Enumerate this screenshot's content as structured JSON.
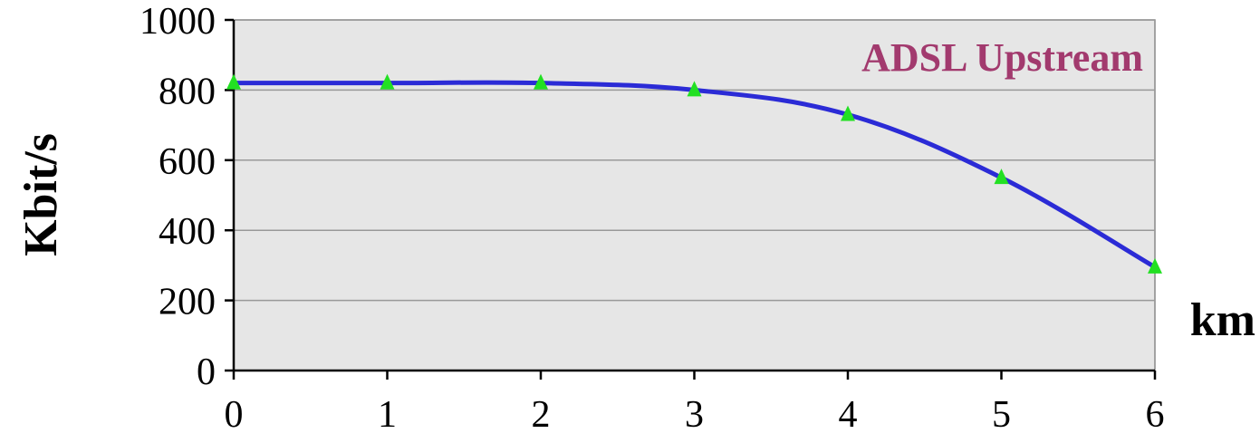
{
  "chart_data": {
    "type": "line",
    "title": "",
    "xlabel": "km",
    "ylabel": "Kbit/s",
    "x": [
      0,
      1,
      2,
      3,
      4,
      5,
      6
    ],
    "x_ticks": [
      "0",
      "1",
      "2",
      "3",
      "4",
      "5",
      "6"
    ],
    "y_ticks": [
      "0",
      "200",
      "400",
      "600",
      "800",
      "1000"
    ],
    "xlim": [
      0,
      6
    ],
    "ylim": [
      0,
      1000
    ],
    "grid": true,
    "series": [
      {
        "name": "ADSL Upstream",
        "values": [
          820,
          820,
          820,
          800,
          730,
          550,
          295
        ],
        "line_color": "#2B2BD6",
        "marker": "triangle",
        "marker_color": "#22E022",
        "label_color": "#A23A6E"
      }
    ],
    "plot_background": "#E6E6E6",
    "gridline_color": "#999999"
  }
}
